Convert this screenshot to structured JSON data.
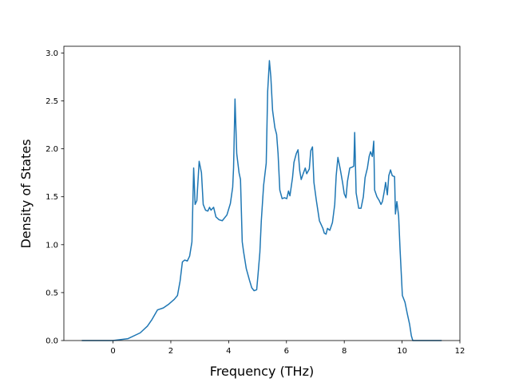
{
  "chart_data": {
    "type": "line",
    "xlabel": "Frequency (THz)",
    "ylabel": "Density of States",
    "color": "#1f77b4",
    "xlim": [
      -1.7,
      12.0
    ],
    "ylim": [
      0,
      3.07
    ],
    "xticks": [
      0,
      2,
      4,
      6,
      8,
      10,
      12
    ],
    "yticks": [
      {
        "value": 0,
        "label": "0.0"
      },
      0.5,
      {
        "value": 1,
        "label": "1.0"
      },
      1.5,
      {
        "value": 2,
        "label": "2.0"
      },
      2.5,
      {
        "value": 3,
        "label": "3.0"
      }
    ],
    "x": [
      -1.08,
      0,
      0.52,
      0.94,
      1.19,
      1.35,
      1.54,
      1.74,
      1.93,
      2.12,
      2.23,
      2.32,
      2.4,
      2.48,
      2.57,
      2.65,
      2.73,
      2.79,
      2.84,
      2.9,
      2.98,
      3.06,
      3.12,
      3.2,
      3.28,
      3.34,
      3.39,
      3.48,
      3.56,
      3.67,
      3.78,
      3.94,
      4.06,
      4.14,
      4.17,
      4.22,
      4.28,
      4.36,
      4.41,
      4.47,
      4.52,
      4.61,
      4.72,
      4.8,
      4.88,
      4.97,
      5.02,
      5.08,
      5.13,
      5.21,
      5.3,
      5.35,
      5.41,
      5.46,
      5.52,
      5.6,
      5.66,
      5.71,
      5.77,
      5.85,
      5.93,
      6.01,
      6.07,
      6.12,
      6.21,
      6.26,
      6.34,
      6.4,
      6.46,
      6.51,
      6.59,
      6.65,
      6.7,
      6.79,
      6.84,
      6.9,
      6.95,
      7.03,
      7.14,
      7.26,
      7.31,
      7.37,
      7.42,
      7.5,
      7.59,
      7.67,
      7.72,
      7.78,
      7.86,
      7.94,
      8.0,
      8.06,
      8.11,
      8.19,
      8.28,
      8.33,
      8.36,
      8.41,
      8.5,
      8.58,
      8.66,
      8.72,
      8.8,
      8.86,
      8.91,
      8.97,
      9.02,
      9.05,
      9.13,
      9.21,
      9.27,
      9.32,
      9.38,
      9.43,
      9.49,
      9.54,
      9.6,
      9.66,
      9.74,
      9.77,
      9.82,
      9.88,
      9.93,
      10.01,
      10.1,
      10.18,
      10.26,
      10.32,
      10.37,
      11.37
    ],
    "values": [
      0,
      0,
      0.02,
      0.08,
      0.15,
      0.22,
      0.32,
      0.34,
      0.38,
      0.43,
      0.47,
      0.62,
      0.82,
      0.84,
      0.83,
      0.88,
      1.03,
      1.8,
      1.42,
      1.46,
      1.87,
      1.75,
      1.42,
      1.36,
      1.35,
      1.39,
      1.36,
      1.39,
      1.29,
      1.26,
      1.25,
      1.31,
      1.43,
      1.6,
      1.8,
      2.52,
      1.95,
      1.75,
      1.68,
      1.03,
      0.92,
      0.75,
      0.63,
      0.55,
      0.52,
      0.53,
      0.7,
      0.92,
      1.25,
      1.62,
      1.85,
      2.6,
      2.92,
      2.75,
      2.4,
      2.22,
      2.15,
      1.95,
      1.57,
      1.48,
      1.49,
      1.48,
      1.56,
      1.51,
      1.7,
      1.86,
      1.95,
      1.99,
      1.77,
      1.68,
      1.75,
      1.8,
      1.74,
      1.79,
      1.98,
      2.02,
      1.65,
      1.47,
      1.25,
      1.17,
      1.12,
      1.11,
      1.17,
      1.15,
      1.23,
      1.42,
      1.72,
      1.91,
      1.79,
      1.65,
      1.53,
      1.49,
      1.66,
      1.8,
      1.81,
      1.82,
      2.17,
      1.54,
      1.38,
      1.38,
      1.5,
      1.7,
      1.8,
      1.92,
      1.97,
      1.92,
      2.08,
      1.57,
      1.5,
      1.46,
      1.42,
      1.45,
      1.55,
      1.65,
      1.52,
      1.72,
      1.78,
      1.72,
      1.71,
      1.32,
      1.45,
      1.3,
      0.95,
      0.47,
      0.4,
      0.28,
      0.17,
      0.05,
      0,
      0
    ]
  }
}
